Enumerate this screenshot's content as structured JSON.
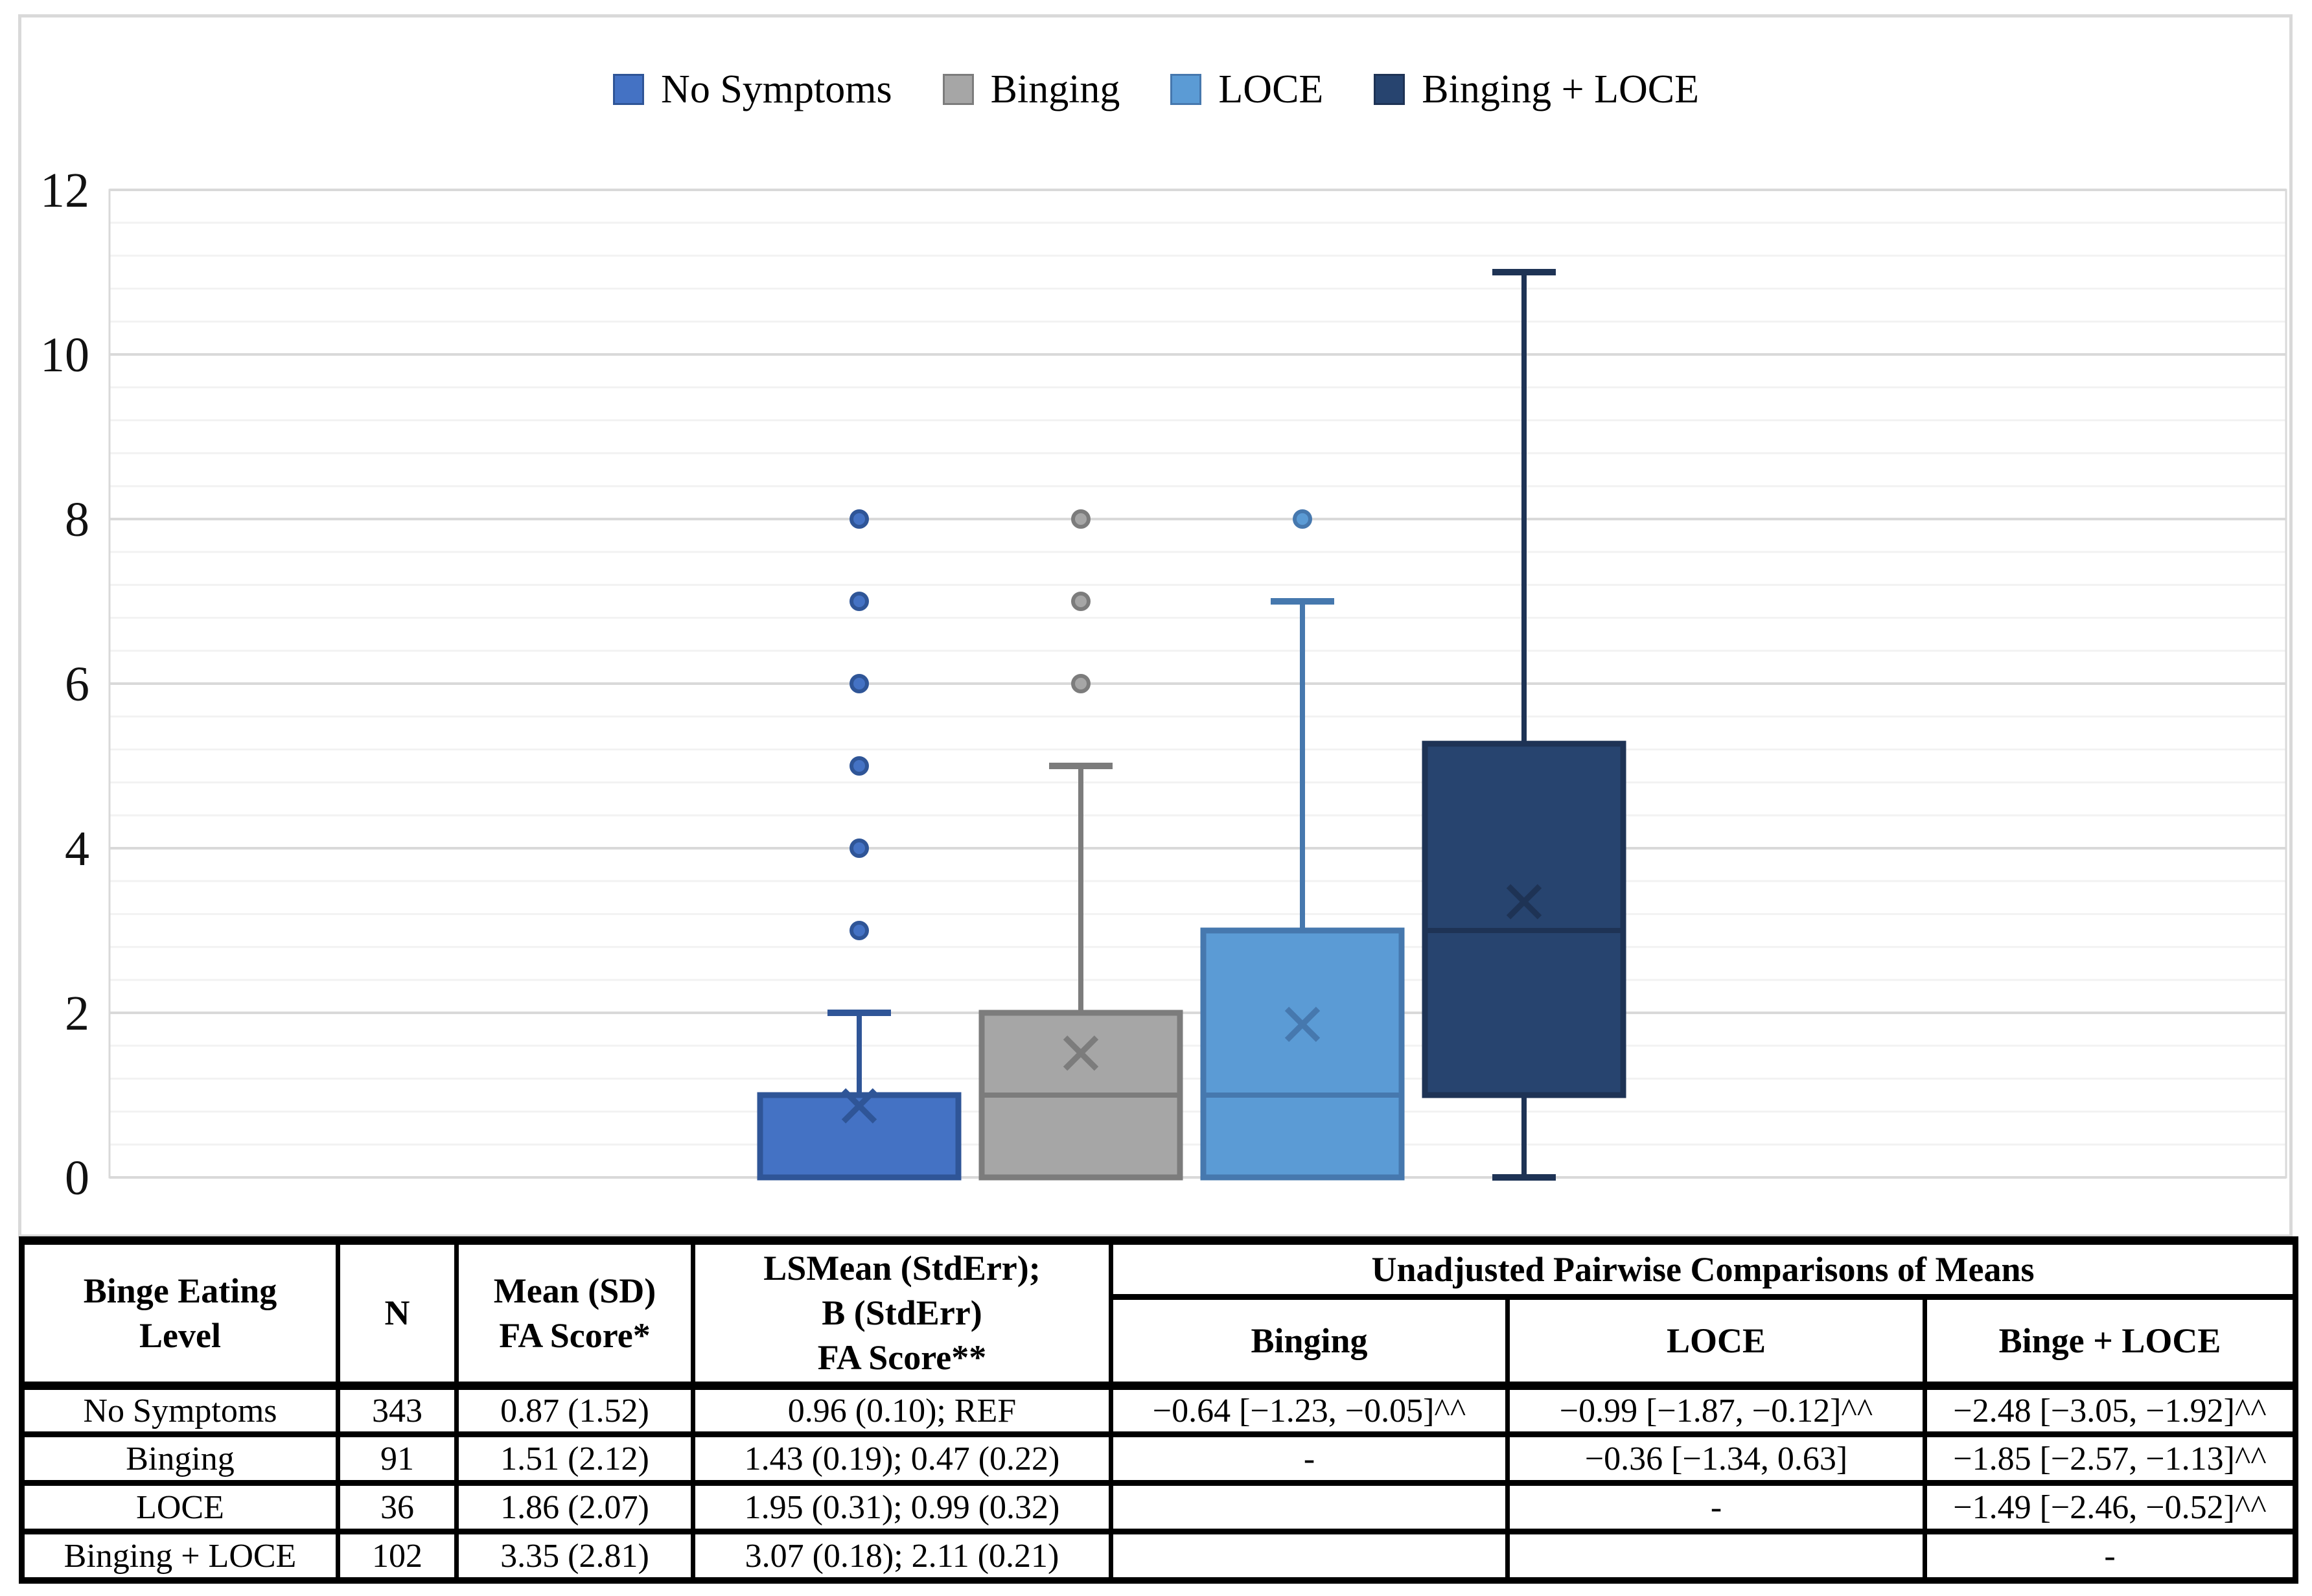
{
  "legend": {
    "items": [
      {
        "label": "No Symptoms",
        "color": "#4472C4",
        "border": "#2F5597"
      },
      {
        "label": "Binging",
        "color": "#A6A6A6",
        "border": "#7C7C7C"
      },
      {
        "label": "LOCE",
        "color": "#5B9BD5",
        "border": "#4678AE"
      },
      {
        "label": "Binging + LOCE",
        "color": "#27446F",
        "border": "#1E3355"
      }
    ]
  },
  "chart_data": {
    "type": "boxplot",
    "title": "",
    "xlabel": "",
    "ylabel": "",
    "ylim": [
      0,
      12
    ],
    "yticks": [
      0,
      2,
      4,
      6,
      8,
      10,
      12
    ],
    "y_major_unit": 2,
    "y_minor_unit": 0.4,
    "grid": "horizontal",
    "legend_position": "top-center",
    "series": [
      {
        "name": "No Symptoms",
        "q1": 0,
        "median": 1,
        "q3": 1,
        "whisker_low": 0,
        "whisker_high": 2,
        "mean": 0.87,
        "outliers": [
          3,
          4,
          5,
          6,
          7,
          8
        ],
        "fill": "#4472C4",
        "line": "#2F5597"
      },
      {
        "name": "Binging",
        "q1": 0,
        "median": 1,
        "q3": 2,
        "whisker_low": 0,
        "whisker_high": 5,
        "mean": 1.51,
        "outliers": [
          6,
          7,
          8
        ],
        "fill": "#A6A6A6",
        "line": "#7C7C7C"
      },
      {
        "name": "LOCE",
        "q1": 0,
        "median": 1,
        "q3": 3,
        "whisker_low": 0,
        "whisker_high": 7,
        "mean": 1.86,
        "outliers": [
          8
        ],
        "fill": "#5B9BD5",
        "line": "#4678AE"
      },
      {
        "name": "Binging + LOCE",
        "q1": 1,
        "median": 3,
        "q3": 5.27,
        "whisker_low": 0,
        "whisker_high": 11,
        "mean": 3.35,
        "outliers": [],
        "fill": "#27446F",
        "line": "#1E3355"
      }
    ]
  },
  "table": {
    "header": {
      "level": "Binge Eating\nLevel",
      "n": "N",
      "mean": "Mean (SD)\nFA Score*",
      "lsmean": "LSMean (StdErr);\nB (StdErr)\nFA Score**",
      "pairwise": "Unadjusted Pairwise Comparisons of Means",
      "sub_binging": "Binging",
      "sub_loce": "LOCE",
      "sub_binge_loce": "Binge + LOCE"
    },
    "rows": [
      [
        "No Symptoms",
        "343",
        "0.87 (1.52)",
        "0.96 (0.10); REF",
        "−0.64 [−1.23, −0.05]^^",
        "−0.99 [−1.87, −0.12]^^",
        "−2.48 [−3.05, −1.92]^^"
      ],
      [
        "Binging",
        "91",
        "1.51 (2.12)",
        "1.43 (0.19); 0.47 (0.22)",
        "-",
        "−0.36 [−1.34, 0.63]",
        "−1.85 [−2.57, −1.13]^^"
      ],
      [
        "LOCE",
        "36",
        "1.86 (2.07)",
        "1.95 (0.31); 0.99 (0.32)",
        "",
        "-",
        "−1.49 [−2.46, −0.52]^^"
      ],
      [
        "Binging + LOCE",
        "102",
        "3.35 (2.81)",
        "3.07 (0.18); 2.11 (0.21)",
        "",
        "",
        "-"
      ]
    ]
  }
}
